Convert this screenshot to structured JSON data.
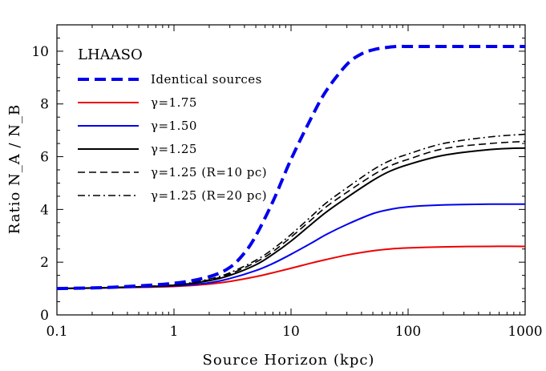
{
  "chart_data": {
    "type": "line",
    "title": "",
    "xlabel": "Source Horizon  (kpc)",
    "ylabel": "Ratio  N_A / N_B",
    "xscale": "log",
    "xlim": [
      0.1,
      1000
    ],
    "ylim": [
      0,
      11
    ],
    "x_ticks": [
      0.1,
      1,
      10,
      100,
      1000
    ],
    "x_tick_labels": [
      "0.1",
      "1",
      "10",
      "100",
      "1000"
    ],
    "y_ticks": [
      0,
      2,
      4,
      6,
      8,
      10
    ],
    "y_tick_labels": [
      "0",
      "2",
      "4",
      "6",
      "8",
      "10"
    ],
    "legend_title": "LHAASO",
    "legend_position": "top-left",
    "series": [
      {
        "name": "Identical sources",
        "color": "#0000ee",
        "style": "dashed-thick",
        "x": [
          0.1,
          0.3,
          1,
          2,
          3,
          4,
          5,
          7,
          10,
          15,
          20,
          30,
          40,
          50,
          60,
          80,
          100,
          200,
          1000
        ],
        "y": [
          1.0,
          1.05,
          1.2,
          1.45,
          1.8,
          2.35,
          3.0,
          4.3,
          5.9,
          7.5,
          8.5,
          9.5,
          9.9,
          10.05,
          10.12,
          10.18,
          10.18,
          10.18,
          10.18
        ]
      },
      {
        "name": "γ=1.75",
        "color": "#ee0000",
        "style": "solid",
        "x": [
          0.1,
          0.3,
          1,
          2,
          3,
          5,
          7,
          10,
          15,
          20,
          30,
          50,
          70,
          100,
          200,
          500,
          1000
        ],
        "y": [
          1.0,
          1.03,
          1.08,
          1.17,
          1.27,
          1.45,
          1.6,
          1.77,
          1.97,
          2.1,
          2.27,
          2.43,
          2.5,
          2.54,
          2.58,
          2.6,
          2.6
        ]
      },
      {
        "name": "γ=1.50",
        "color": "#0000ee",
        "style": "solid",
        "x": [
          0.1,
          0.3,
          1,
          2,
          3,
          5,
          7,
          10,
          15,
          20,
          30,
          50,
          70,
          100,
          200,
          500,
          1000
        ],
        "y": [
          1.0,
          1.03,
          1.1,
          1.22,
          1.38,
          1.68,
          1.95,
          2.3,
          2.73,
          3.05,
          3.43,
          3.84,
          4.0,
          4.1,
          4.17,
          4.2,
          4.2
        ]
      },
      {
        "name": "γ=1.25",
        "color": "#000000",
        "style": "solid",
        "x": [
          0.1,
          0.3,
          1,
          2,
          3,
          5,
          7,
          10,
          15,
          20,
          30,
          50,
          70,
          100,
          200,
          500,
          1000
        ],
        "y": [
          1.0,
          1.04,
          1.12,
          1.3,
          1.5,
          1.9,
          2.3,
          2.8,
          3.45,
          3.9,
          4.45,
          5.1,
          5.45,
          5.7,
          6.05,
          6.27,
          6.33
        ]
      },
      {
        "name": "γ=1.25 (R=10 pc)",
        "color": "#000000",
        "style": "dashed",
        "x": [
          0.1,
          0.3,
          1,
          2,
          3,
          5,
          7,
          10,
          15,
          20,
          30,
          50,
          70,
          100,
          200,
          500,
          1000
        ],
        "y": [
          1.0,
          1.04,
          1.13,
          1.33,
          1.55,
          2.0,
          2.4,
          2.95,
          3.62,
          4.1,
          4.65,
          5.3,
          5.65,
          5.9,
          6.3,
          6.5,
          6.58
        ]
      },
      {
        "name": "γ=1.25 (R=20 pc)",
        "color": "#000000",
        "style": "dashdot",
        "x": [
          0.1,
          0.3,
          1,
          2,
          3,
          5,
          7,
          10,
          15,
          20,
          30,
          50,
          70,
          100,
          200,
          500,
          1000
        ],
        "y": [
          1.0,
          1.04,
          1.14,
          1.36,
          1.6,
          2.07,
          2.5,
          3.05,
          3.75,
          4.25,
          4.82,
          5.5,
          5.85,
          6.1,
          6.5,
          6.75,
          6.85
        ]
      }
    ]
  }
}
